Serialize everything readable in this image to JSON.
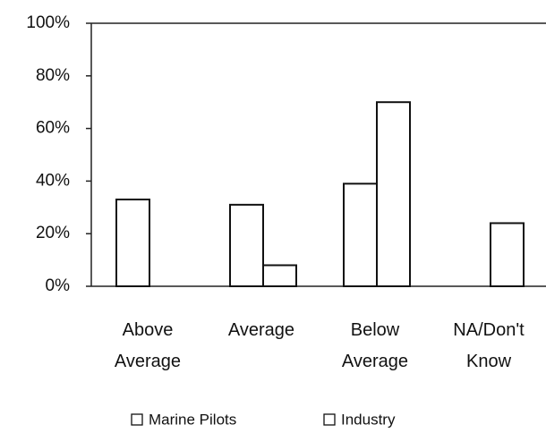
{
  "chart_data": {
    "type": "bar",
    "categories": [
      "Above Average",
      "Average",
      "Below Average",
      "NA/Don't Know"
    ],
    "series": [
      {
        "name": "Marine Pilots",
        "color": "#ffffff",
        "values": [
          33,
          31,
          39,
          0
        ]
      },
      {
        "name": "Industry",
        "color": "#ffffff",
        "values": [
          0,
          8,
          70,
          24
        ]
      }
    ],
    "ylim": [
      0,
      100
    ],
    "yticks": [
      {
        "value": 0,
        "label": "0%"
      },
      {
        "value": 20,
        "label": "20%"
      },
      {
        "value": 40,
        "label": "40%"
      },
      {
        "value": 60,
        "label": "60%"
      },
      {
        "value": 80,
        "label": "80%"
      },
      {
        "value": 100,
        "label": "100%"
      }
    ],
    "grid": false
  }
}
